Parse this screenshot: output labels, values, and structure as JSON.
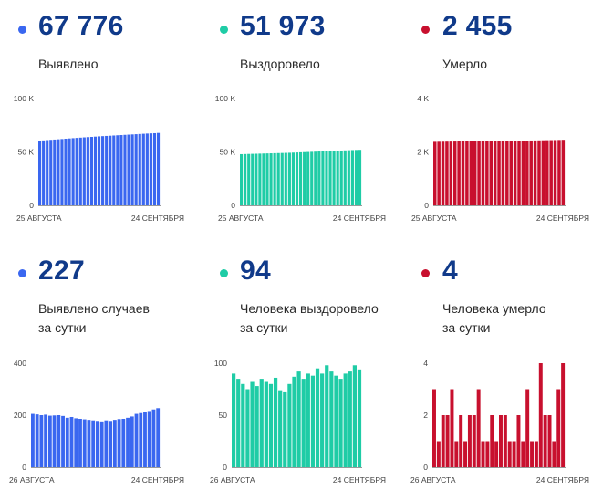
{
  "stats": [
    {
      "value": "67 776",
      "label": [
        "Выявлено"
      ],
      "color": "#3a67f0"
    },
    {
      "value": "51 973",
      "label": [
        "Выздоровело"
      ],
      "color": "#1fcca6"
    },
    {
      "value": "2 455",
      "label": [
        "Умерло"
      ],
      "color": "#c8102e"
    },
    {
      "value": "227",
      "label": [
        "Выявлено случаев",
        "за сутки"
      ],
      "color": "#3a67f0"
    },
    {
      "value": "94",
      "label": [
        "Человека выздоровело",
        "за сутки"
      ],
      "color": "#1fcca6"
    },
    {
      "value": "4",
      "label": [
        "Человека умерло",
        "за сутки"
      ],
      "color": "#c8102e"
    }
  ],
  "chart_data": [
    {
      "type": "bar",
      "title": "Выявлено",
      "color": "#3a67f0",
      "x_start_label": "25 АВГУСТА",
      "x_end_label": "24 СЕНТЯБРЯ",
      "yticks": [
        {
          "value": 0,
          "label": "0"
        },
        {
          "value": 50000,
          "label": "50 K"
        },
        {
          "value": 100000,
          "label": "100 K"
        }
      ],
      "ylim": [
        0,
        100000
      ],
      "values": [
        60500,
        60800,
        61100,
        61350,
        61600,
        61850,
        62100,
        62400,
        62650,
        62900,
        63150,
        63400,
        63650,
        63900,
        64100,
        64350,
        64600,
        64800,
        65000,
        65200,
        65400,
        65600,
        65800,
        66000,
        66200,
        66400,
        66600,
        66800,
        67000,
        67200,
        67400,
        67550,
        67776
      ]
    },
    {
      "type": "bar",
      "title": "Выздоровело",
      "color": "#1fcca6",
      "x_start_label": "25 АВГУСТА",
      "x_end_label": "24 СЕНТЯБРЯ",
      "yticks": [
        {
          "value": 0,
          "label": "0"
        },
        {
          "value": 50000,
          "label": "50 K"
        },
        {
          "value": 100000,
          "label": "100 K"
        }
      ],
      "ylim": [
        0,
        100000
      ],
      "values": [
        47900,
        48000,
        48100,
        48200,
        48300,
        48400,
        48500,
        48600,
        48700,
        48800,
        48900,
        49000,
        49100,
        49200,
        49350,
        49500,
        49650,
        49800,
        49950,
        50100,
        50250,
        50400,
        50550,
        50700,
        50850,
        51000,
        51150,
        51300,
        51450,
        51600,
        51750,
        51870,
        51973
      ]
    },
    {
      "type": "bar",
      "title": "Умерло",
      "color": "#c8102e",
      "x_start_label": "25 АВГУСТА",
      "x_end_label": "24 СЕНТЯБРЯ",
      "yticks": [
        {
          "value": 0,
          "label": "0"
        },
        {
          "value": 2000,
          "label": "2 K"
        },
        {
          "value": 4000,
          "label": "4 K"
        }
      ],
      "ylim": [
        0,
        4000
      ],
      "values": [
        2380,
        2383,
        2385,
        2387,
        2389,
        2391,
        2393,
        2395,
        2397,
        2399,
        2401,
        2403,
        2405,
        2407,
        2409,
        2411,
        2413,
        2415,
        2417,
        2419,
        2421,
        2423,
        2425,
        2427,
        2429,
        2431,
        2434,
        2437,
        2440,
        2443,
        2446,
        2450,
        2455
      ]
    },
    {
      "type": "bar",
      "title": "Выявлено случаев за сутки",
      "color": "#3a67f0",
      "x_start_label": "26 АВГУСТА",
      "x_end_label": "24 СЕНТЯБРЯ",
      "yticks": [
        {
          "value": 0,
          "label": "0"
        },
        {
          "value": 200,
          "label": "200"
        },
        {
          "value": 400,
          "label": "400"
        }
      ],
      "ylim": [
        0,
        400
      ],
      "values": [
        205,
        203,
        200,
        202,
        198,
        199,
        200,
        197,
        190,
        193,
        188,
        186,
        184,
        182,
        180,
        178,
        176,
        180,
        178,
        182,
        185,
        186,
        190,
        195,
        205,
        208,
        212,
        216,
        222,
        227
      ]
    },
    {
      "type": "bar",
      "title": "Человека выздоровело за сутки",
      "color": "#1fcca6",
      "x_start_label": "26 АВГУСТА",
      "x_end_label": "24 СЕНТЯБРЯ",
      "yticks": [
        {
          "value": 0,
          "label": "0"
        },
        {
          "value": 50,
          "label": "50"
        },
        {
          "value": 100,
          "label": "100"
        }
      ],
      "ylim": [
        0,
        100
      ],
      "values": [
        90,
        85,
        80,
        75,
        82,
        78,
        85,
        82,
        80,
        86,
        74,
        72,
        80,
        87,
        92,
        85,
        90,
        88,
        95,
        90,
        98,
        92,
        88,
        85,
        90,
        92,
        98,
        94
      ]
    },
    {
      "type": "bar",
      "title": "Человека умерло за сутки",
      "color": "#c8102e",
      "x_start_label": "26 АВГУСТА",
      "x_end_label": "24 СЕНТЯБРЯ",
      "yticks": [
        {
          "value": 0,
          "label": "0"
        },
        {
          "value": 2,
          "label": "2"
        },
        {
          "value": 4,
          "label": "4"
        }
      ],
      "ylim": [
        0,
        4
      ],
      "values": [
        3,
        1,
        2,
        2,
        3,
        1,
        2,
        1,
        2,
        2,
        3,
        1,
        1,
        2,
        1,
        2,
        2,
        1,
        1,
        2,
        1,
        3,
        1,
        1,
        4,
        2,
        2,
        1,
        3,
        4
      ]
    }
  ]
}
